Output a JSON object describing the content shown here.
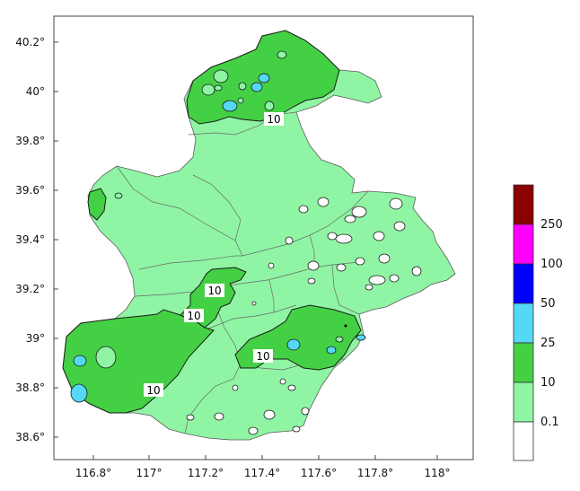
{
  "map": {
    "y_axis_labels": [
      "40.2°",
      "40°",
      "39.8°",
      "39.6°",
      "39.4°",
      "39.2°",
      "39°",
      "38.8°",
      "38.6°"
    ],
    "x_axis_labels": [
      "116.8°",
      "117°",
      "117.2°",
      "117.4°",
      "117.6°",
      "117.8°",
      "118°"
    ],
    "contour_labels": [
      "10",
      "10",
      "10",
      "10",
      "10"
    ]
  },
  "legend": {
    "levels": [
      "250",
      "100",
      "50",
      "25",
      "10",
      "0.1"
    ],
    "colors": [
      "#8b0000",
      "#ff00ff",
      "#0000ff",
      "#55d8f6",
      "#44d044",
      "#8ff5a4",
      "#ffffff"
    ]
  },
  "colors": {
    "base_fill": "#8ff5a4",
    "high_fill": "#44d044",
    "max_fill": "#55d8f6",
    "district_line": "#6a6a6a",
    "contour_line": "#1a1a1a"
  }
}
